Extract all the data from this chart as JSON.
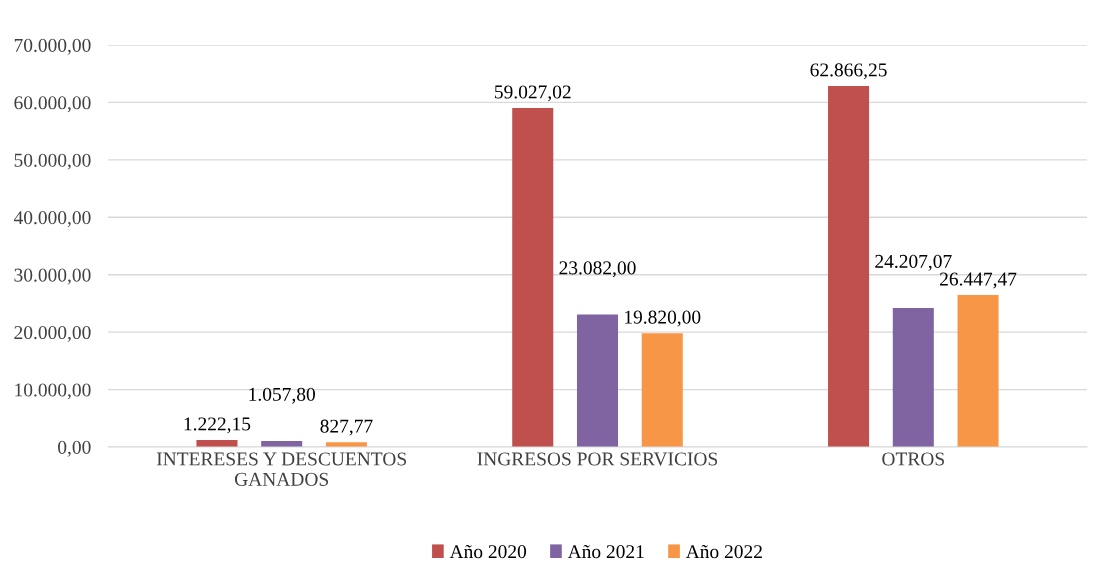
{
  "chart_data": {
    "type": "bar",
    "categories": [
      "INTERESES Y DESCUENTOS\nGANADOS",
      "INGRESOS POR SERVICIOS",
      "OTROS"
    ],
    "series": [
      {
        "name": "Año 2020",
        "color": "#c0504d",
        "values": [
          1222.15,
          59027.02,
          62866.25
        ],
        "value_labels": [
          "1.222,15",
          "59.027,02",
          "62.866,25"
        ]
      },
      {
        "name": "Año 2021",
        "color": "#8064a2",
        "values": [
          1057.8,
          23082.0,
          24207.07
        ],
        "value_labels": [
          "1.057,80",
          "23.082,00",
          "24.207,07"
        ]
      },
      {
        "name": "Año 2022",
        "color": "#f79646",
        "values": [
          827.77,
          19820.0,
          26447.47
        ],
        "value_labels": [
          "827,77",
          "19.820,00",
          "26.447,47"
        ]
      }
    ],
    "ylim": [
      0,
      70000
    ],
    "yticks": [
      {
        "value": 0,
        "label": "0,00"
      },
      {
        "value": 10000,
        "label": "10.000,00"
      },
      {
        "value": 20000,
        "label": "20.000,00"
      },
      {
        "value": 30000,
        "label": "30.000,00"
      },
      {
        "value": 40000,
        "label": "40.000,00"
      },
      {
        "value": 50000,
        "label": "50.000,00"
      },
      {
        "value": 60000,
        "label": "60.000,00"
      },
      {
        "value": 70000,
        "label": "70.000,00"
      }
    ],
    "grid": "y",
    "legend": "bottom"
  }
}
